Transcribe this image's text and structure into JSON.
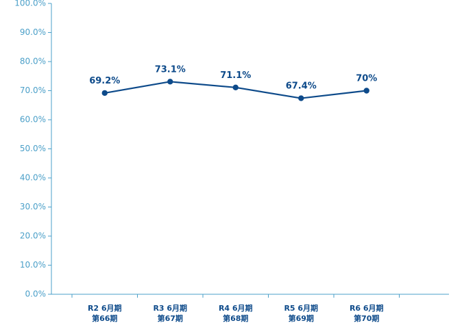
{
  "colors": {
    "axis": "#4a9fc8",
    "series": "#0d4a8a",
    "tick_text": "#4a9fc8",
    "category_text": "#0d4a8a"
  },
  "chart_data": {
    "type": "line",
    "title": "",
    "xlabel": "",
    "ylabel": "",
    "ylim": [
      0,
      100
    ],
    "yticks": [
      0,
      10,
      20,
      30,
      40,
      50,
      60,
      70,
      80,
      90,
      100
    ],
    "ytick_labels": [
      "0.0%",
      "10.0%",
      "20.0%",
      "30.0%",
      "40.0%",
      "50.0%",
      "60.0%",
      "70.0%",
      "80.0%",
      "90.0%",
      "100.0%"
    ],
    "grid": false,
    "categories": [
      [
        "R2 6月期",
        "第66期"
      ],
      [
        "R3 6月期",
        "第67期"
      ],
      [
        "R4 6月期",
        "第68期"
      ],
      [
        "R5 6月期",
        "第69期"
      ],
      [
        "R6 6月期",
        "第70期"
      ]
    ],
    "series": [
      {
        "values": [
          69.2,
          73.1,
          71.1,
          67.4,
          70
        ],
        "data_labels": [
          "69.2%",
          "73.1%",
          "71.1%",
          "67.4%",
          "70%"
        ]
      }
    ]
  }
}
